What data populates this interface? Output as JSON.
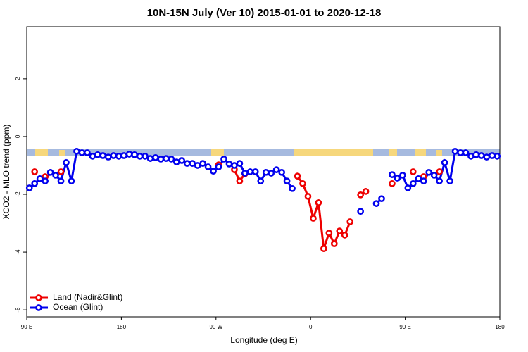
{
  "chart_data": {
    "type": "line",
    "title": "10N-15N July (Ver 10)   2015-01-01 to 2020-12-18",
    "x_label": "Longitude (deg E)",
    "y_label": "XCO2 - MLO trend (ppm)",
    "xlim": [
      90,
      540
    ],
    "ylim": [
      -6.24,
      3.8
    ],
    "xticks": [
      {
        "value": 90,
        "label": "90 E"
      },
      180,
      {
        "value": 270,
        "label": "90 W"
      },
      {
        "value": 360,
        "label": "0"
      },
      {
        "value": 450,
        "label": "90 E"
      },
      {
        "value": 540,
        "label": "180"
      }
    ],
    "yticks": [
      -6,
      -4,
      -2,
      0,
      2
    ],
    "legend": "bottom-left",
    "x": [
      92.5,
      97.5,
      102.5,
      107.5,
      112.5,
      117.5,
      122.5,
      127.5,
      132.5,
      137.5,
      142.5,
      147.5,
      152.5,
      157.5,
      162.5,
      167.5,
      172.5,
      177.5,
      182.5,
      187.5,
      192.5,
      197.5,
      202.5,
      207.5,
      212.5,
      217.5,
      222.5,
      227.5,
      232.5,
      237.5,
      242.5,
      247.5,
      252.5,
      257.5,
      262.5,
      267.5,
      272.5,
      277.5,
      282.5,
      287.5,
      292.5,
      297.5,
      302.5,
      307.5,
      312.5,
      317.5,
      322.5,
      327.5,
      332.5,
      337.5,
      342.5,
      347.5,
      352.5,
      357.5,
      362.5,
      367.5,
      372.5,
      377.5,
      382.5,
      387.5,
      392.5,
      397.5,
      402.5,
      407.5,
      412.5,
      417.5,
      422.5,
      427.5,
      432.5,
      437.5,
      442.5,
      447.5,
      452.5,
      457.5,
      462.5,
      467.5,
      472.5,
      477.5,
      482.5,
      487.5,
      492.5,
      497.5,
      502.5,
      507.5,
      512.5,
      517.5,
      522.5,
      527.5,
      532.5,
      537.5
    ],
    "series": [
      {
        "name": "Land (Nadir&Glint)",
        "color": "#ee0000",
        "values": [
          null,
          -1.22,
          null,
          -1.39,
          null,
          null,
          -1.22,
          null,
          null,
          null,
          null,
          null,
          null,
          null,
          null,
          null,
          null,
          null,
          null,
          null,
          null,
          null,
          null,
          null,
          null,
          null,
          null,
          null,
          null,
          null,
          null,
          null,
          null,
          null,
          null,
          null,
          -0.98,
          null,
          null,
          -1.15,
          -1.54,
          -1.29,
          null,
          null,
          null,
          null,
          null,
          null,
          null,
          null,
          null,
          -1.37,
          -1.63,
          -2.07,
          -2.83,
          -2.29,
          -3.88,
          -3.34,
          -3.71,
          -3.27,
          -3.41,
          -2.95,
          null,
          -2.02,
          -1.9,
          null,
          null,
          null,
          null,
          -1.63,
          null,
          null,
          null,
          -1.22,
          null,
          -1.39,
          null,
          null,
          -1.22,
          null,
          null,
          null,
          null,
          null,
          null,
          null,
          null,
          null,
          null,
          null
        ]
      },
      {
        "name": "Ocean (Glint)",
        "color": "#0000ee",
        "values": [
          -1.78,
          -1.63,
          -1.46,
          -1.54,
          -1.24,
          -1.34,
          -1.54,
          -0.9,
          -1.54,
          -0.51,
          -0.56,
          -0.56,
          -0.68,
          -0.63,
          -0.66,
          -0.71,
          -0.66,
          -0.68,
          -0.66,
          -0.61,
          -0.63,
          -0.68,
          -0.68,
          -0.76,
          -0.73,
          -0.78,
          -0.76,
          -0.78,
          -0.88,
          -0.83,
          -0.93,
          -0.93,
          -1.0,
          -0.93,
          -1.05,
          -1.2,
          -1.05,
          -0.78,
          -0.95,
          -1.0,
          -0.93,
          -1.27,
          -1.22,
          -1.22,
          -1.54,
          -1.24,
          -1.27,
          -1.15,
          -1.24,
          -1.54,
          -1.8,
          null,
          null,
          null,
          null,
          null,
          null,
          null,
          null,
          null,
          null,
          null,
          null,
          -2.59,
          null,
          null,
          -2.32,
          -2.15,
          null,
          -1.32,
          -1.44,
          -1.34,
          -1.78,
          -1.63,
          -1.46,
          -1.54,
          -1.24,
          -1.34,
          -1.54,
          -0.9,
          -1.54,
          -0.51,
          -0.56,
          -0.56,
          -0.68,
          -0.63,
          -0.66,
          -0.71,
          -0.66,
          -0.68
        ]
      }
    ]
  }
}
